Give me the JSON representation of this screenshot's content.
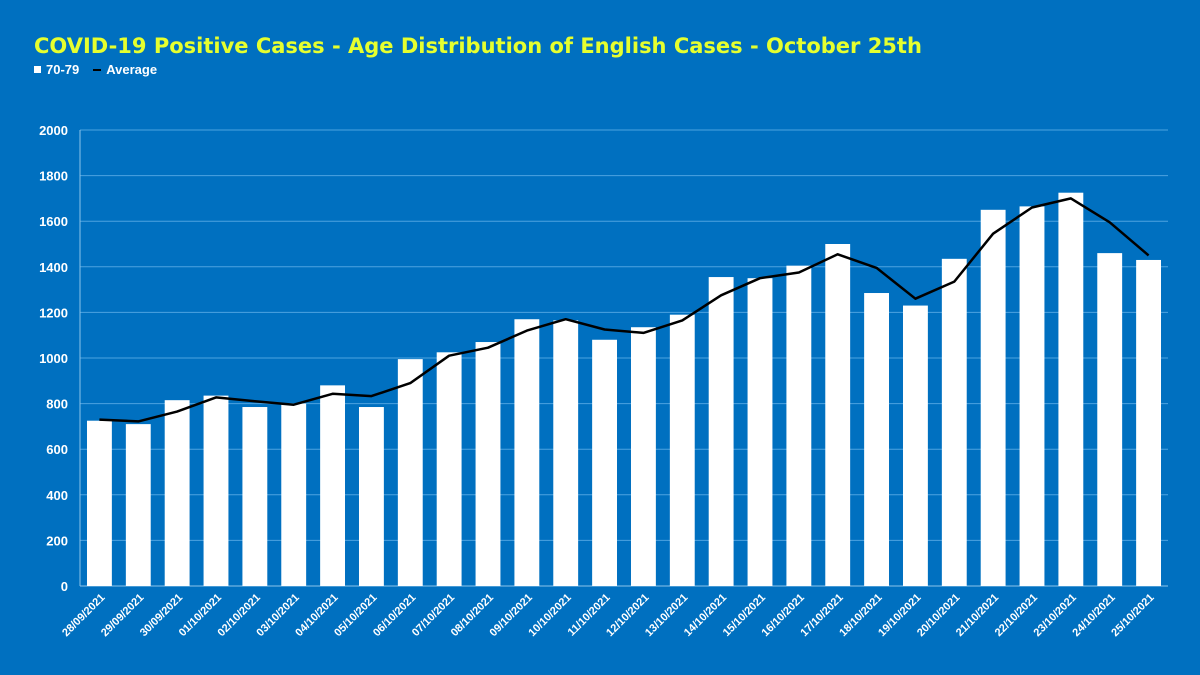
{
  "colors": {
    "background": "#0070C0",
    "title": "#E6FF2E",
    "bars": "#FFFFFF",
    "average_line": "#000000",
    "gridlines": "#4DA3E0",
    "text": "#FFFFFF"
  },
  "chart_data": {
    "type": "bar",
    "title": "COVID-19 Positive Cases - Age Distribution of English Cases - October 25th",
    "xlabel": "",
    "ylabel": "",
    "ylim": [
      0,
      2000
    ],
    "yticks": [
      0,
      200,
      400,
      600,
      800,
      1000,
      1200,
      1400,
      1600,
      1800,
      2000
    ],
    "grid": true,
    "legend_position": "top-left",
    "categories": [
      "28/09/2021",
      "29/09/2021",
      "30/09/2021",
      "01/10/2021",
      "02/10/2021",
      "03/10/2021",
      "04/10/2021",
      "05/10/2021",
      "06/10/2021",
      "07/10/2021",
      "08/10/2021",
      "09/10/2021",
      "10/10/2021",
      "11/10/2021",
      "12/10/2021",
      "13/10/2021",
      "14/10/2021",
      "15/10/2021",
      "16/10/2021",
      "17/10/2021",
      "18/10/2021",
      "19/10/2021",
      "20/10/2021",
      "21/10/2021",
      "22/10/2021",
      "23/10/2021",
      "24/10/2021",
      "25/10/2021"
    ],
    "series": [
      {
        "name": "70-79",
        "type": "bar",
        "values": [
          725,
          710,
          815,
          835,
          785,
          800,
          880,
          785,
          995,
          1025,
          1070,
          1170,
          1165,
          1080,
          1135,
          1190,
          1355,
          1350,
          1405,
          1500,
          1285,
          1230,
          1435,
          1650,
          1665,
          1725,
          1460,
          1430
        ]
      },
      {
        "name": "Average",
        "type": "line",
        "values": [
          730,
          722,
          765,
          827,
          810,
          795,
          843,
          833,
          890,
          1010,
          1045,
          1120,
          1170,
          1125,
          1110,
          1165,
          1275,
          1350,
          1375,
          1455,
          1395,
          1260,
          1335,
          1545,
          1660,
          1700,
          1595,
          1450
        ]
      }
    ]
  }
}
